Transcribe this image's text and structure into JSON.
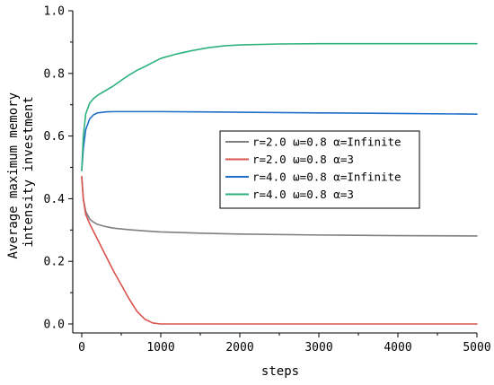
{
  "chart_data": {
    "type": "line",
    "title": "",
    "xlabel": "steps",
    "ylabel_lines": [
      "Average maximum memory",
      "intensity investment"
    ],
    "xlim": [
      0,
      5000
    ],
    "ylim": [
      0.0,
      1.0
    ],
    "x_ticks": [
      0,
      1000,
      2000,
      3000,
      4000,
      5000
    ],
    "y_ticks": [
      0.0,
      0.2,
      0.4,
      0.6,
      0.8,
      1.0
    ],
    "x_tick_labels": [
      "0",
      "1000",
      "2000",
      "3000",
      "4000",
      "5000"
    ],
    "y_tick_labels": [
      "0.0",
      "0.2",
      "0.4",
      "0.6",
      "0.8",
      "1.0"
    ],
    "grid": false,
    "legend_position": "center-right",
    "series": [
      {
        "name": "r=2.0  ω=0.8 α=Infinite",
        "color": "#808080",
        "x": [
          0,
          20,
          50,
          100,
          150,
          200,
          300,
          400,
          600,
          800,
          1000,
          1500,
          2000,
          3000,
          4000,
          5000
        ],
        "y": [
          0.47,
          0.4,
          0.36,
          0.335,
          0.325,
          0.318,
          0.311,
          0.306,
          0.301,
          0.297,
          0.294,
          0.29,
          0.287,
          0.284,
          0.282,
          0.281
        ]
      },
      {
        "name": "r=2.0  ω=0.8 α=3",
        "color": "#d9534f",
        "x": [
          0,
          20,
          50,
          100,
          200,
          300,
          400,
          500,
          600,
          700,
          800,
          900,
          1000,
          1100,
          1500,
          2000,
          3000,
          4000,
          5000
        ],
        "y": [
          0.47,
          0.4,
          0.35,
          0.32,
          0.27,
          0.22,
          0.17,
          0.125,
          0.08,
          0.04,
          0.015,
          0.003,
          0.0,
          0.0,
          0.0,
          0.0,
          0.0,
          0.0,
          0.0
        ]
      },
      {
        "name": "r=4.0  ω=0.8 α=Infinite",
        "color": "#1f6fc7",
        "x": [
          0,
          20,
          50,
          100,
          150,
          200,
          300,
          400,
          600,
          800,
          1000,
          1500,
          2000,
          3000,
          4000,
          5000
        ],
        "y": [
          0.49,
          0.56,
          0.62,
          0.655,
          0.668,
          0.674,
          0.677,
          0.678,
          0.678,
          0.678,
          0.678,
          0.677,
          0.676,
          0.674,
          0.672,
          0.67
        ]
      },
      {
        "name": "r=4.0  ω=0.8 α=3",
        "color": "#2db27d",
        "x": [
          0,
          20,
          50,
          100,
          150,
          200,
          300,
          400,
          500,
          600,
          700,
          800,
          900,
          1000,
          1200,
          1400,
          1600,
          1800,
          2000,
          2500,
          3000,
          4000,
          5000
        ],
        "y": [
          0.49,
          0.6,
          0.67,
          0.705,
          0.72,
          0.73,
          0.745,
          0.76,
          0.778,
          0.795,
          0.81,
          0.822,
          0.835,
          0.848,
          0.862,
          0.873,
          0.882,
          0.888,
          0.891,
          0.894,
          0.895,
          0.895,
          0.895
        ]
      }
    ]
  }
}
